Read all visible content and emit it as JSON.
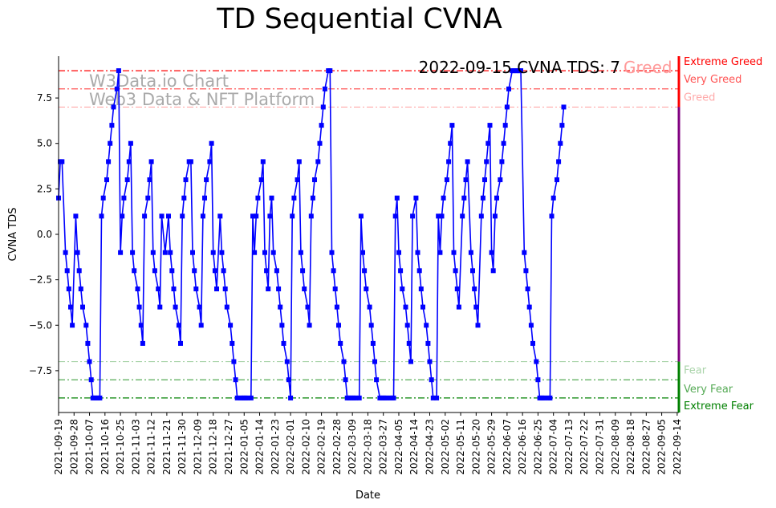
{
  "chart_data": {
    "type": "line",
    "title": "TD Sequential CVNA",
    "xlabel": "Date",
    "ylabel": "CVNA TDS",
    "ylim": [
      -9.8,
      9.8
    ],
    "yticks": [
      -7.5,
      -5.0,
      -2.5,
      0.0,
      2.5,
      5.0,
      7.5
    ],
    "ytick_labels": [
      "−7.5",
      "−5.0",
      "−2.5",
      "0.0",
      "2.5",
      "5.0",
      "7.5"
    ],
    "x_start": "2021-09-19",
    "x_end": "2022-09-15",
    "xtick_labels": [
      "2021-09-19",
      "2021-09-28",
      "2021-10-07",
      "2021-10-16",
      "2021-10-25",
      "2021-11-03",
      "2021-11-12",
      "2021-11-21",
      "2021-11-30",
      "2021-12-09",
      "2021-12-18",
      "2021-12-27",
      "2022-01-05",
      "2022-01-14",
      "2022-01-23",
      "2022-02-01",
      "2022-02-10",
      "2022-02-19",
      "2022-02-28",
      "2022-03-09",
      "2022-03-18",
      "2022-03-27",
      "2022-04-05",
      "2022-04-14",
      "2022-04-23",
      "2022-05-02",
      "2022-05-11",
      "2022-05-20",
      "2022-05-29",
      "2022-06-07",
      "2022-06-16",
      "2022-06-25",
      "2022-07-04",
      "2022-07-13",
      "2022-07-22",
      "2022-07-31",
      "2022-08-09",
      "2022-08-18",
      "2022-08-27",
      "2022-09-05",
      "2022-09-14"
    ],
    "series": [
      {
        "name": "CVNA TDS",
        "color": "#0000ff",
        "marker": "square",
        "points": [
          [
            0,
            2
          ],
          [
            1,
            4
          ],
          [
            2,
            4
          ],
          [
            4,
            -1
          ],
          [
            5,
            -2
          ],
          [
            6,
            -3
          ],
          [
            7,
            -4
          ],
          [
            8,
            -5
          ],
          [
            10,
            1
          ],
          [
            11,
            -1
          ],
          [
            12,
            -2
          ],
          [
            13,
            -3
          ],
          [
            14,
            -4
          ],
          [
            16,
            -5
          ],
          [
            17,
            -6
          ],
          [
            18,
            -7
          ],
          [
            19,
            -8
          ],
          [
            20,
            -9
          ],
          [
            21,
            -9
          ],
          [
            22,
            -9
          ],
          [
            23,
            -9
          ],
          [
            24,
            -9
          ],
          [
            25,
            1
          ],
          [
            26,
            2
          ],
          [
            28,
            3
          ],
          [
            29,
            4
          ],
          [
            30,
            5
          ],
          [
            31,
            6
          ],
          [
            32,
            7
          ],
          [
            34,
            8
          ],
          [
            35,
            9
          ],
          [
            36,
            -1
          ],
          [
            37,
            1
          ],
          [
            38,
            2
          ],
          [
            40,
            3
          ],
          [
            41,
            4
          ],
          [
            42,
            5
          ],
          [
            43,
            -1
          ],
          [
            44,
            -2
          ],
          [
            46,
            -3
          ],
          [
            47,
            -4
          ],
          [
            48,
            -5
          ],
          [
            49,
            -6
          ],
          [
            50,
            1
          ],
          [
            52,
            2
          ],
          [
            53,
            3
          ],
          [
            54,
            4
          ],
          [
            55,
            -1
          ],
          [
            56,
            -2
          ],
          [
            58,
            -3
          ],
          [
            59,
            -4
          ],
          [
            60,
            1
          ],
          [
            62,
            -1
          ],
          [
            64,
            1
          ],
          [
            65,
            -1
          ],
          [
            66,
            -2
          ],
          [
            67,
            -3
          ],
          [
            68,
            -4
          ],
          [
            70,
            -5
          ],
          [
            71,
            -6
          ],
          [
            72,
            1
          ],
          [
            73,
            2
          ],
          [
            74,
            3
          ],
          [
            76,
            4
          ],
          [
            77,
            4
          ],
          [
            78,
            -1
          ],
          [
            79,
            -2
          ],
          [
            80,
            -3
          ],
          [
            82,
            -4
          ],
          [
            83,
            -5
          ],
          [
            84,
            1
          ],
          [
            85,
            2
          ],
          [
            86,
            3
          ],
          [
            88,
            4
          ],
          [
            89,
            5
          ],
          [
            90,
            -1
          ],
          [
            91,
            -2
          ],
          [
            92,
            -3
          ],
          [
            94,
            1
          ],
          [
            95,
            -1
          ],
          [
            96,
            -2
          ],
          [
            97,
            -3
          ],
          [
            98,
            -4
          ],
          [
            100,
            -5
          ],
          [
            101,
            -6
          ],
          [
            102,
            -7
          ],
          [
            103,
            -8
          ],
          [
            104,
            -9
          ],
          [
            106,
            -9
          ],
          [
            107,
            -9
          ],
          [
            108,
            -9
          ],
          [
            109,
            -9
          ],
          [
            110,
            -9
          ],
          [
            112,
            -9
          ],
          [
            113,
            1
          ],
          [
            114,
            -1
          ],
          [
            115,
            1
          ],
          [
            116,
            2
          ],
          [
            118,
            3
          ],
          [
            119,
            4
          ],
          [
            120,
            -1
          ],
          [
            121,
            -2
          ],
          [
            122,
            -3
          ],
          [
            123,
            1
          ],
          [
            124,
            2
          ],
          [
            125,
            -1
          ],
          [
            127,
            -2
          ],
          [
            128,
            -3
          ],
          [
            129,
            -4
          ],
          [
            130,
            -5
          ],
          [
            131,
            -6
          ],
          [
            133,
            -7
          ],
          [
            134,
            -8
          ],
          [
            135,
            -9
          ],
          [
            136,
            1
          ],
          [
            137,
            2
          ],
          [
            139,
            3
          ],
          [
            140,
            4
          ],
          [
            141,
            -1
          ],
          [
            142,
            -2
          ],
          [
            143,
            -3
          ],
          [
            145,
            -4
          ],
          [
            146,
            -5
          ],
          [
            147,
            1
          ],
          [
            148,
            2
          ],
          [
            149,
            3
          ],
          [
            151,
            4
          ],
          [
            152,
            5
          ],
          [
            153,
            6
          ],
          [
            154,
            7
          ],
          [
            155,
            8
          ],
          [
            157,
            9
          ],
          [
            158,
            9
          ],
          [
            159,
            -1
          ],
          [
            160,
            -2
          ],
          [
            161,
            -3
          ],
          [
            162,
            -4
          ],
          [
            163,
            -5
          ],
          [
            164,
            -6
          ],
          [
            166,
            -7
          ],
          [
            167,
            -8
          ],
          [
            168,
            -9
          ],
          [
            169,
            -9
          ],
          [
            170,
            -9
          ],
          [
            171,
            -9
          ],
          [
            172,
            -9
          ],
          [
            173,
            -9
          ],
          [
            175,
            -9
          ],
          [
            176,
            1
          ],
          [
            177,
            -1
          ],
          [
            178,
            -2
          ],
          [
            179,
            -3
          ],
          [
            181,
            -4
          ],
          [
            182,
            -5
          ],
          [
            183,
            -6
          ],
          [
            184,
            -7
          ],
          [
            185,
            -8
          ],
          [
            187,
            -9
          ],
          [
            188,
            -9
          ],
          [
            189,
            -9
          ],
          [
            190,
            -9
          ],
          [
            191,
            -9
          ],
          [
            193,
            -9
          ],
          [
            194,
            -9
          ],
          [
            195,
            -9
          ],
          [
            196,
            1
          ],
          [
            197,
            2
          ],
          [
            198,
            -1
          ],
          [
            199,
            -2
          ],
          [
            200,
            -3
          ],
          [
            202,
            -4
          ],
          [
            203,
            -5
          ],
          [
            204,
            -6
          ],
          [
            205,
            -7
          ],
          [
            206,
            1
          ],
          [
            208,
            2
          ],
          [
            209,
            -1
          ],
          [
            210,
            -2
          ],
          [
            211,
            -3
          ],
          [
            212,
            -4
          ],
          [
            214,
            -5
          ],
          [
            215,
            -6
          ],
          [
            216,
            -7
          ],
          [
            217,
            -8
          ],
          [
            218,
            -9
          ],
          [
            220,
            -9
          ],
          [
            221,
            1
          ],
          [
            222,
            -1
          ],
          [
            223,
            1
          ],
          [
            224,
            2
          ],
          [
            226,
            3
          ],
          [
            227,
            4
          ],
          [
            228,
            5
          ],
          [
            229,
            6
          ],
          [
            230,
            -1
          ],
          [
            231,
            -2
          ],
          [
            232,
            -3
          ],
          [
            233,
            -4
          ],
          [
            235,
            1
          ],
          [
            236,
            2
          ],
          [
            237,
            3
          ],
          [
            238,
            4
          ],
          [
            240,
            -1
          ],
          [
            241,
            -2
          ],
          [
            242,
            -3
          ],
          [
            243,
            -4
          ],
          [
            244,
            -5
          ],
          [
            246,
            1
          ],
          [
            247,
            2
          ],
          [
            248,
            3
          ],
          [
            249,
            4
          ],
          [
            250,
            5
          ],
          [
            251,
            6
          ],
          [
            252,
            -1
          ],
          [
            253,
            -2
          ],
          [
            254,
            1
          ],
          [
            255,
            2
          ],
          [
            257,
            3
          ],
          [
            258,
            4
          ],
          [
            259,
            5
          ],
          [
            260,
            6
          ],
          [
            261,
            7
          ],
          [
            262,
            8
          ],
          [
            264,
            9
          ],
          [
            265,
            9
          ],
          [
            266,
            9
          ],
          [
            267,
            9
          ],
          [
            268,
            9
          ],
          [
            269,
            9
          ],
          [
            271,
            -1
          ],
          [
            272,
            -2
          ],
          [
            273,
            -3
          ],
          [
            274,
            -4
          ],
          [
            275,
            -5
          ],
          [
            276,
            -6
          ],
          [
            278,
            -7
          ],
          [
            279,
            -8
          ],
          [
            280,
            -9
          ],
          [
            281,
            -9
          ],
          [
            282,
            -9
          ],
          [
            283,
            -9
          ],
          [
            285,
            -9
          ],
          [
            286,
            -9
          ],
          [
            287,
            1
          ],
          [
            288,
            2
          ],
          [
            290,
            3
          ],
          [
            291,
            4
          ],
          [
            292,
            5
          ],
          [
            293,
            6
          ],
          [
            294,
            7
          ]
        ]
      }
    ],
    "levels": [
      {
        "name": "Extreme Greed",
        "value": 9,
        "color": "#ff0000",
        "style": "dashdot"
      },
      {
        "name": "Very Greed",
        "value": 8,
        "color": "#ff5555",
        "style": "dashdot"
      },
      {
        "name": "Greed",
        "value": 7,
        "color": "#ffaaaa",
        "style": "dashdot"
      },
      {
        "name": "Fear",
        "value": -7,
        "color": "#aad4aa",
        "style": "dashdot"
      },
      {
        "name": "Very Fear",
        "value": -8,
        "color": "#55aa55",
        "style": "dashdot"
      },
      {
        "name": "Extreme Fear",
        "value": -9,
        "color": "#008000",
        "style": "dashdot"
      }
    ],
    "annotation": {
      "label": "2022-09-15 CVNA TDS: 7",
      "status": "Greed",
      "status_color": "#ff9999"
    },
    "watermark": {
      "line1": "W3Data.io Chart",
      "line2": "Web3 Data & NFT Platform"
    }
  }
}
